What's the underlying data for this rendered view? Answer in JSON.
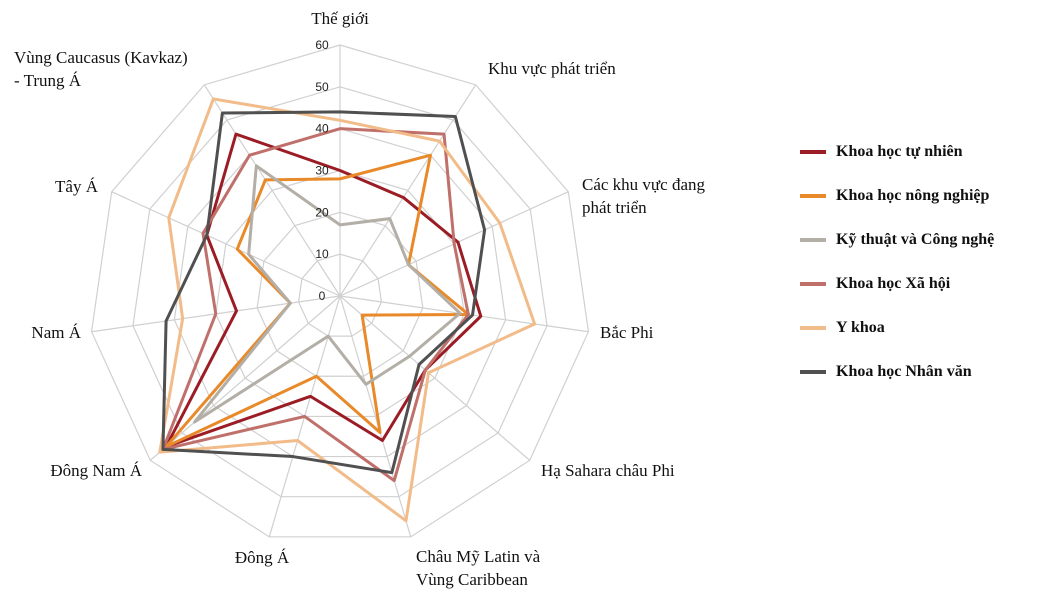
{
  "chart_data": {
    "type": "radar",
    "title": "",
    "axes": [
      "Thế giới",
      "Khu vực phát triển",
      "Các khu vực đang phát triển",
      "Bắc Phi",
      "Hạ Sahara châu Phi",
      "Châu Mỹ Latin và Vùng Caribbean",
      "Đông Á",
      "Đông Nam Á",
      "Nam Á",
      "Tây Á",
      "Vùng Caucasus (Kavkaz) - Trung Á"
    ],
    "axes_display": [
      [
        "Thế giới"
      ],
      [
        "Khu vực phát triển"
      ],
      [
        "Các khu vực đang",
        "phát triển"
      ],
      [
        "Bắc Phi"
      ],
      [
        "Hạ Sahara châu Phi"
      ],
      [
        "Châu Mỹ Latin và",
        "Vùng Caribbean"
      ],
      [
        "Đông Á"
      ],
      [
        "Đông Nam Á"
      ],
      [
        "Nam Á"
      ],
      [
        "Tây Á"
      ],
      [
        "Vùng Caucasus (Kavkaz)",
        "- Trung Á"
      ]
    ],
    "range": [
      0,
      60
    ],
    "ticks": [
      0,
      10,
      20,
      30,
      40,
      50,
      60
    ],
    "grid": true,
    "legend_position": "right",
    "series": [
      {
        "name": "Khoa học tự nhiên",
        "color": "#9b1c25",
        "values": [
          30,
          28,
          31,
          34,
          27,
          36,
          25,
          55,
          25,
          35,
          46
        ]
      },
      {
        "name": "Khoa học nông nghiệp",
        "color": "#e8892a",
        "values": [
          28,
          40,
          18,
          31,
          7,
          34,
          20,
          55,
          12,
          27,
          33
        ]
      },
      {
        "name": "Kỹ thuật và Công nghệ",
        "color": "#b3aea6",
        "values": [
          17,
          22,
          18,
          29,
          22,
          22,
          10,
          46,
          12,
          24,
          37
        ]
      },
      {
        "name": "Khoa học Xã hội",
        "color": "#c0706a",
        "values": [
          40,
          46,
          30,
          31,
          27,
          46,
          30,
          56,
          30,
          36,
          40
        ]
      },
      {
        "name": "Y khoa",
        "color": "#f2bc8a",
        "values": [
          42,
          44,
          42,
          47,
          28,
          56,
          36,
          57,
          38,
          45,
          56
        ]
      },
      {
        "name": "Khoa học Nhân văn",
        "color": "#505050",
        "values": [
          44,
          51,
          38,
          32,
          25,
          44,
          40,
          56,
          42,
          35,
          52
        ]
      }
    ]
  }
}
